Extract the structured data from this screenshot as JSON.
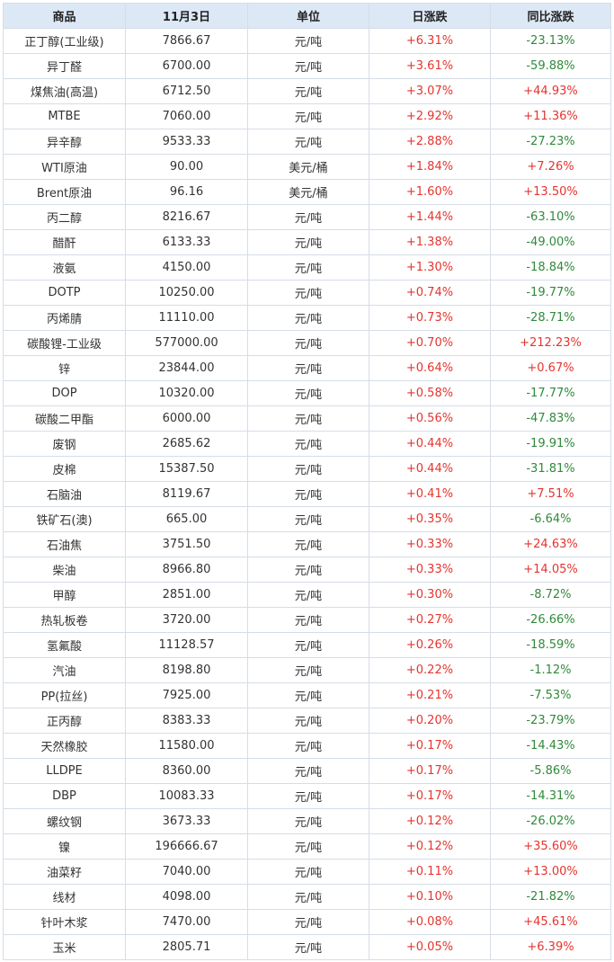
{
  "colors": {
    "header_bg": "#dce8f5",
    "border": "#d5dde6",
    "up": "#e5342e",
    "down": "#2f8a3a",
    "text": "#333333"
  },
  "headers": [
    "商品",
    "11月3日",
    "单位",
    "日涨跌",
    "同比涨跌"
  ],
  "rows": [
    [
      "正丁醇(工业级)",
      "7866.67",
      "元/吨",
      "+6.31%",
      "-23.13%"
    ],
    [
      "异丁醛",
      "6700.00",
      "元/吨",
      "+3.61%",
      "-59.88%"
    ],
    [
      "煤焦油(高温)",
      "6712.50",
      "元/吨",
      "+3.07%",
      "+44.93%"
    ],
    [
      "MTBE",
      "7060.00",
      "元/吨",
      "+2.92%",
      "+11.36%"
    ],
    [
      "异辛醇",
      "9533.33",
      "元/吨",
      "+2.88%",
      "-27.23%"
    ],
    [
      "WTI原油",
      "90.00",
      "美元/桶",
      "+1.84%",
      "+7.26%"
    ],
    [
      "Brent原油",
      "96.16",
      "美元/桶",
      "+1.60%",
      "+13.50%"
    ],
    [
      "丙二醇",
      "8216.67",
      "元/吨",
      "+1.44%",
      "-63.10%"
    ],
    [
      "醋酐",
      "6133.33",
      "元/吨",
      "+1.38%",
      "-49.00%"
    ],
    [
      "液氨",
      "4150.00",
      "元/吨",
      "+1.30%",
      "-18.84%"
    ],
    [
      "DOTP",
      "10250.00",
      "元/吨",
      "+0.74%",
      "-19.77%"
    ],
    [
      "丙烯腈",
      "11110.00",
      "元/吨",
      "+0.73%",
      "-28.71%"
    ],
    [
      "碳酸锂-工业级",
      "577000.00",
      "元/吨",
      "+0.70%",
      "+212.23%"
    ],
    [
      "锌",
      "23844.00",
      "元/吨",
      "+0.64%",
      "+0.67%"
    ],
    [
      "DOP",
      "10320.00",
      "元/吨",
      "+0.58%",
      "-17.77%"
    ],
    [
      "碳酸二甲酯",
      "6000.00",
      "元/吨",
      "+0.56%",
      "-47.83%"
    ],
    [
      "废钢",
      "2685.62",
      "元/吨",
      "+0.44%",
      "-19.91%"
    ],
    [
      "皮棉",
      "15387.50",
      "元/吨",
      "+0.44%",
      "-31.81%"
    ],
    [
      "石脑油",
      "8119.67",
      "元/吨",
      "+0.41%",
      "+7.51%"
    ],
    [
      "铁矿石(澳)",
      "665.00",
      "元/吨",
      "+0.35%",
      "-6.64%"
    ],
    [
      "石油焦",
      "3751.50",
      "元/吨",
      "+0.33%",
      "+24.63%"
    ],
    [
      "柴油",
      "8966.80",
      "元/吨",
      "+0.33%",
      "+14.05%"
    ],
    [
      "甲醇",
      "2851.00",
      "元/吨",
      "+0.30%",
      "-8.72%"
    ],
    [
      "热轧板卷",
      "3720.00",
      "元/吨",
      "+0.27%",
      "-26.66%"
    ],
    [
      "氢氟酸",
      "11128.57",
      "元/吨",
      "+0.26%",
      "-18.59%"
    ],
    [
      "汽油",
      "8198.80",
      "元/吨",
      "+0.22%",
      "-1.12%"
    ],
    [
      "PP(拉丝)",
      "7925.00",
      "元/吨",
      "+0.21%",
      "-7.53%"
    ],
    [
      "正丙醇",
      "8383.33",
      "元/吨",
      "+0.20%",
      "-23.79%"
    ],
    [
      "天然橡胶",
      "11580.00",
      "元/吨",
      "+0.17%",
      "-14.43%"
    ],
    [
      "LLDPE",
      "8360.00",
      "元/吨",
      "+0.17%",
      "-5.86%"
    ],
    [
      "DBP",
      "10083.33",
      "元/吨",
      "+0.17%",
      "-14.31%"
    ],
    [
      "螺纹钢",
      "3673.33",
      "元/吨",
      "+0.12%",
      "-26.02%"
    ],
    [
      "镍",
      "196666.67",
      "元/吨",
      "+0.12%",
      "+35.60%"
    ],
    [
      "油菜籽",
      "7040.00",
      "元/吨",
      "+0.11%",
      "+13.00%"
    ],
    [
      "线材",
      "4098.00",
      "元/吨",
      "+0.10%",
      "-21.82%"
    ],
    [
      "针叶木浆",
      "7470.00",
      "元/吨",
      "+0.08%",
      "+45.61%"
    ],
    [
      "玉米",
      "2805.71",
      "元/吨",
      "+0.05%",
      "+6.39%"
    ]
  ]
}
